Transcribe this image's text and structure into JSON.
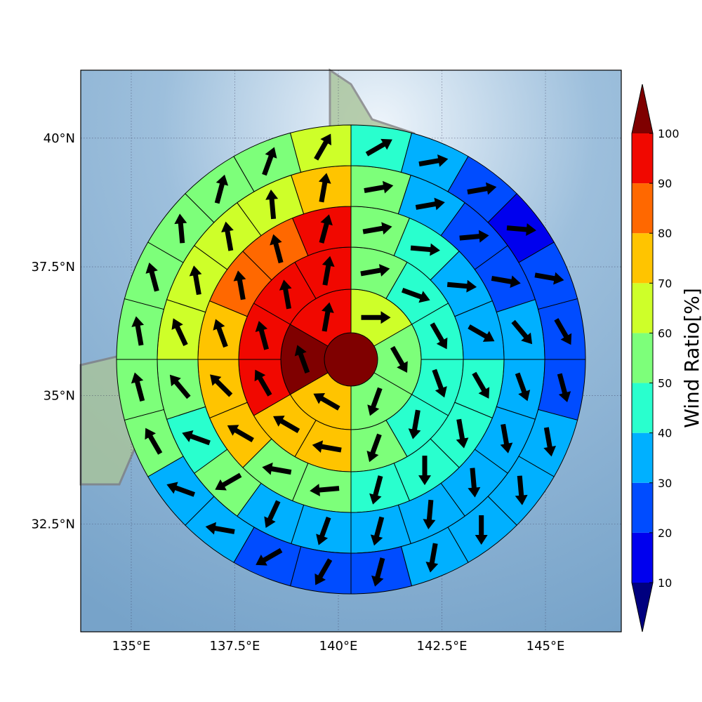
{
  "chart_data": {
    "type": "polar-sector-map",
    "xlim": [
      133.78,
      146.83
    ],
    "ylim": [
      30.41,
      41.32
    ],
    "xticks": [
      {
        "value": 135,
        "label": "135°E"
      },
      {
        "value": 137.5,
        "label": "137.5°E"
      },
      {
        "value": 140,
        "label": "140°E"
      },
      {
        "value": 142.5,
        "label": "142.5°E"
      },
      {
        "value": 145,
        "label": "145°E"
      }
    ],
    "yticks": [
      {
        "value": 32.5,
        "label": "32.5°N"
      },
      {
        "value": 35,
        "label": "35°N"
      },
      {
        "value": 37.5,
        "label": "37.5°N"
      },
      {
        "value": 40,
        "label": "40°N"
      }
    ],
    "grid": true,
    "colorbar": {
      "label": "Wind Ratio[%]",
      "ticks": [
        10,
        20,
        30,
        40,
        50,
        60,
        70,
        80,
        90,
        100
      ],
      "colors": [
        "#00007f",
        "#0000ee",
        "#004cff",
        "#00b0ff",
        "#29ffce",
        "#7dff7a",
        "#ceff29",
        "#ffc400",
        "#ff6800",
        "#f10800",
        "#7f0000"
      ],
      "extend": "both"
    },
    "center": {
      "value": 105
    },
    "rings": [
      {
        "values": [
          65,
          55,
          55,
          75,
          105,
          95
        ],
        "directions": [
          90,
          150,
          200,
          300,
          340,
          10
        ]
      },
      {
        "values": [
          55,
          45,
          45,
          45,
          45,
          55,
          75,
          75,
          95,
          95,
          95,
          95
        ],
        "directions": [
          80,
          110,
          150,
          160,
          190,
          200,
          280,
          300,
          330,
          345,
          350,
          10
        ]
      },
      {
        "values": [
          55,
          45,
          35,
          35,
          45,
          45,
          45,
          45,
          55,
          55,
          75,
          75,
          75,
          85,
          85,
          95
        ],
        "directions": [
          80,
          95,
          95,
          120,
          150,
          170,
          180,
          195,
          265,
          280,
          300,
          315,
          340,
          350,
          345,
          15
        ]
      },
      {
        "values": [
          55,
          35,
          25,
          25,
          35,
          35,
          35,
          35,
          35,
          35,
          35,
          35,
          55,
          45,
          55,
          65,
          65,
          65,
          65,
          75
        ],
        "directions": [
          80,
          80,
          85,
          100,
          140,
          160,
          170,
          175,
          185,
          195,
          200,
          205,
          240,
          290,
          320,
          335,
          350,
          350,
          355,
          10
        ]
      },
      {
        "values": [
          45,
          35,
          25,
          15,
          25,
          25,
          25,
          35,
          35,
          35,
          35,
          25,
          25,
          25,
          35,
          35,
          55,
          55,
          55,
          55,
          55,
          55,
          55,
          65
        ],
        "directions": [
          60,
          80,
          80,
          95,
          100,
          150,
          165,
          170,
          175,
          180,
          190,
          195,
          210,
          240,
          280,
          290,
          330,
          345,
          350,
          345,
          355,
          15,
          20,
          30
        ]
      }
    ]
  }
}
